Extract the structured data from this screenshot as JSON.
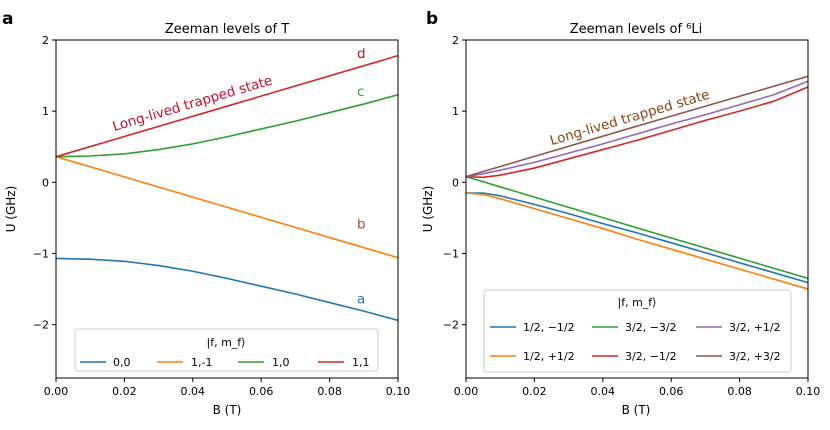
{
  "figure": {
    "panels": [
      {
        "letter": "a"
      },
      {
        "letter": "b"
      }
    ]
  },
  "chart_data": [
    {
      "type": "line",
      "title": "Zeeman levels of T",
      "xlabel": "B (T)",
      "ylabel": "U (GHz)",
      "xlim": [
        0,
        0.1
      ],
      "ylim": [
        -2.75,
        2
      ],
      "xticks": [
        0,
        0.02,
        0.04,
        0.06,
        0.08,
        0.1
      ],
      "xticklabels": [
        "0.00",
        "0.02",
        "0.04",
        "0.06",
        "0.08",
        "0.10"
      ],
      "yticks": [
        -2,
        -1,
        0,
        1,
        2
      ],
      "yticklabels": [
        "−2",
        "−1",
        "0",
        "1",
        "2"
      ],
      "legend": {
        "title": "|f, m_f⟩",
        "location": "lower center",
        "ncol": 4
      },
      "series": [
        {
          "name": "0,0",
          "color": "#1f77b4",
          "x": [
            0,
            0.01,
            0.02,
            0.03,
            0.04,
            0.05,
            0.06,
            0.07,
            0.08,
            0.09,
            0.1
          ],
          "y": [
            -1.07,
            -1.08,
            -1.11,
            -1.17,
            -1.25,
            -1.35,
            -1.46,
            -1.57,
            -1.69,
            -1.81,
            -1.94
          ]
        },
        {
          "name": "1,-1",
          "color": "#ff7f0e",
          "x": [
            0,
            0.05,
            0.1
          ],
          "y": [
            0.36,
            -0.35,
            -1.06
          ]
        },
        {
          "name": "1,0",
          "color": "#2ca02c",
          "x": [
            0,
            0.01,
            0.02,
            0.03,
            0.04,
            0.05,
            0.06,
            0.07,
            0.08,
            0.09,
            0.1
          ],
          "y": [
            0.36,
            0.37,
            0.4,
            0.46,
            0.54,
            0.64,
            0.75,
            0.86,
            0.98,
            1.1,
            1.23
          ]
        },
        {
          "name": "1,1",
          "color": "#d62728",
          "x": [
            0,
            0.05,
            0.1
          ],
          "y": [
            0.36,
            1.07,
            1.78
          ]
        }
      ],
      "annotations": [
        {
          "text": "d",
          "x": 0.088,
          "y": 1.75,
          "color": "#b2182b"
        },
        {
          "text": "c",
          "x": 0.088,
          "y": 1.21,
          "color": "#2ca02c"
        },
        {
          "text": "b",
          "x": 0.088,
          "y": -0.65,
          "color": "#a0522d"
        },
        {
          "text": "a",
          "x": 0.088,
          "y": -1.7,
          "color": "#1f77b4"
        },
        {
          "text": "Long-lived trapped state",
          "x": 0.017,
          "y": 0.72,
          "color": "#c8102e",
          "angle_data": [
            0.05,
            0.71
          ]
        }
      ]
    },
    {
      "type": "line",
      "title": "Zeeman levels of ⁶Li",
      "xlabel": "B (T)",
      "ylabel": "U (GHz)",
      "xlim": [
        0,
        0.1
      ],
      "ylim": [
        -2.75,
        2
      ],
      "xticks": [
        0,
        0.02,
        0.04,
        0.06,
        0.08,
        0.1
      ],
      "xticklabels": [
        "0.00",
        "0.02",
        "0.04",
        "0.06",
        "0.08",
        "0.10"
      ],
      "yticks": [
        -2,
        -1,
        0,
        1,
        2
      ],
      "yticklabels": [
        "−2",
        "−1",
        "0",
        "1",
        "2"
      ],
      "legend": {
        "title": "|f, m_f⟩",
        "location": "lower center",
        "ncol": 3
      },
      "series": [
        {
          "name": "1/2, −1/2",
          "color": "#1f77b4",
          "x": [
            0,
            0.005,
            0.01,
            0.02,
            0.03,
            0.04,
            0.05,
            0.06,
            0.07,
            0.08,
            0.09,
            0.1
          ],
          "y": [
            -0.15,
            -0.15,
            -0.19,
            -0.31,
            -0.44,
            -0.58,
            -0.71,
            -0.85,
            -0.99,
            -1.13,
            -1.27,
            -1.41
          ]
        },
        {
          "name": "1/2, +1/2",
          "color": "#ff7f0e",
          "x": [
            0,
            0.005,
            0.01,
            0.02,
            0.03,
            0.04,
            0.05,
            0.06,
            0.07,
            0.08,
            0.09,
            0.1
          ],
          "y": [
            -0.15,
            -0.17,
            -0.23,
            -0.37,
            -0.51,
            -0.65,
            -0.8,
            -0.94,
            -1.08,
            -1.22,
            -1.36,
            -1.5
          ]
        },
        {
          "name": "3/2, −3/2",
          "color": "#2ca02c",
          "x": [
            0,
            0.05,
            0.1
          ],
          "y": [
            0.08,
            -0.64,
            -1.35
          ]
        },
        {
          "name": "3/2, −1/2",
          "color": "#d62728",
          "x": [
            0,
            0.005,
            0.01,
            0.02,
            0.03,
            0.04,
            0.05,
            0.06,
            0.07,
            0.08,
            0.09,
            0.1
          ],
          "y": [
            0.08,
            0.07,
            0.1,
            0.2,
            0.33,
            0.46,
            0.59,
            0.73,
            0.87,
            1.0,
            1.14,
            1.34
          ]
        },
        {
          "name": "3/2, +1/2",
          "color": "#9467bd",
          "x": [
            0,
            0.005,
            0.01,
            0.02,
            0.03,
            0.04,
            0.05,
            0.06,
            0.07,
            0.08,
            0.09,
            0.1
          ],
          "y": [
            0.08,
            0.12,
            0.17,
            0.28,
            0.41,
            0.54,
            0.68,
            0.82,
            0.95,
            1.09,
            1.23,
            1.42
          ]
        },
        {
          "name": "3/2, +3/2",
          "color": "#8c564b",
          "x": [
            0,
            0.05,
            0.1
          ],
          "y": [
            0.08,
            0.79,
            1.49
          ]
        }
      ],
      "annotations": [
        {
          "text": "Long-lived trapped state",
          "x": 0.025,
          "y": 0.52,
          "color": "#8b4513",
          "angle_data": [
            0.05,
            0.71
          ]
        }
      ]
    }
  ]
}
